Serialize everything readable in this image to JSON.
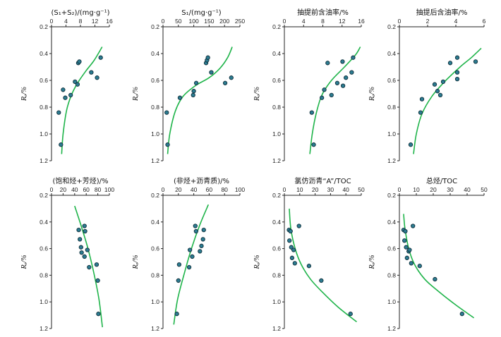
{
  "chart_data": [
    {
      "type": "scatter",
      "title": "(S₁+S₂)/(mg·g⁻¹)",
      "ylabel": "Rₒ/%",
      "xlim": [
        0,
        16
      ],
      "xticks": [
        0,
        4,
        8,
        12,
        16
      ],
      "ylim": [
        0.2,
        1.2
      ],
      "yticks": [
        0.2,
        0.4,
        0.6,
        0.8,
        1.0,
        1.2
      ],
      "points": [
        [
          2,
          0.84
        ],
        [
          2.6,
          1.08
        ],
        [
          3.2,
          0.67
        ],
        [
          3.8,
          0.73
        ],
        [
          5.3,
          0.71
        ],
        [
          6.5,
          0.61
        ],
        [
          7.2,
          0.63
        ],
        [
          7.4,
          0.47
        ],
        [
          7.7,
          0.46
        ],
        [
          11,
          0.54
        ],
        [
          12.6,
          0.58
        ],
        [
          13.6,
          0.43
        ]
      ],
      "trend": [
        [
          2.8,
          1.15
        ],
        [
          3.2,
          1.0
        ],
        [
          4.2,
          0.82
        ],
        [
          5.5,
          0.71
        ],
        [
          7.2,
          0.62
        ],
        [
          9.5,
          0.53
        ],
        [
          11.8,
          0.45
        ],
        [
          14,
          0.35
        ]
      ]
    },
    {
      "type": "scatter",
      "title": "S₁/(mg·g⁻¹)",
      "ylabel": "Rₒ/%",
      "xlim": [
        0,
        250
      ],
      "xticks": [
        0,
        50,
        100,
        150,
        200,
        250
      ],
      "ylim": [
        0.2,
        1.2
      ],
      "yticks": [
        0.2,
        0.4,
        0.6,
        0.8,
        1.0,
        1.2
      ],
      "points": [
        [
          12,
          0.84
        ],
        [
          15,
          1.08
        ],
        [
          55,
          0.73
        ],
        [
          98,
          0.71
        ],
        [
          100,
          0.68
        ],
        [
          108,
          0.62
        ],
        [
          140,
          0.47
        ],
        [
          143,
          0.45
        ],
        [
          146,
          0.43
        ],
        [
          157,
          0.54
        ],
        [
          202,
          0.62
        ],
        [
          222,
          0.58
        ]
      ],
      "trend": [
        [
          15,
          1.15
        ],
        [
          22,
          1.0
        ],
        [
          40,
          0.83
        ],
        [
          65,
          0.72
        ],
        [
          105,
          0.64
        ],
        [
          150,
          0.58
        ],
        [
          185,
          0.51
        ],
        [
          210,
          0.43
        ],
        [
          225,
          0.35
        ]
      ]
    },
    {
      "type": "scatter",
      "title": "抽提前含油率/%",
      "ylabel": "Rₒ/%",
      "xlim": [
        0,
        16
      ],
      "xticks": [
        0,
        4,
        8,
        12,
        16
      ],
      "ylim": [
        0.2,
        1.2
      ],
      "yticks": [
        0.2,
        0.4,
        0.6,
        0.8,
        1.0,
        1.2
      ],
      "points": [
        [
          5.7,
          0.84
        ],
        [
          6.1,
          1.08
        ],
        [
          7.8,
          0.73
        ],
        [
          8.3,
          0.67
        ],
        [
          9,
          0.47
        ],
        [
          9.8,
          0.71
        ],
        [
          11,
          0.62
        ],
        [
          12.1,
          0.46
        ],
        [
          12.2,
          0.64
        ],
        [
          12.8,
          0.58
        ],
        [
          14,
          0.54
        ],
        [
          14.3,
          0.43
        ]
      ],
      "trend": [
        [
          5.3,
          1.15
        ],
        [
          5.8,
          1.0
        ],
        [
          6.6,
          0.85
        ],
        [
          7.8,
          0.71
        ],
        [
          9.8,
          0.6
        ],
        [
          12.5,
          0.5
        ],
        [
          14.8,
          0.41
        ],
        [
          15.8,
          0.35
        ]
      ]
    },
    {
      "type": "scatter",
      "title": "抽提后含油率/%",
      "ylabel": "Rₒ/%",
      "xlim": [
        0,
        6
      ],
      "xticks": [
        0,
        2,
        4,
        6
      ],
      "ylim": [
        0.2,
        1.2
      ],
      "yticks": [
        0.2,
        0.4,
        0.6,
        0.8,
        1.0,
        1.2
      ],
      "points": [
        [
          0.8,
          1.08
        ],
        [
          1.5,
          0.84
        ],
        [
          1.6,
          0.74
        ],
        [
          2.5,
          0.63
        ],
        [
          2.7,
          0.68
        ],
        [
          2.9,
          0.71
        ],
        [
          3.1,
          0.61
        ],
        [
          3.6,
          0.47
        ],
        [
          4.1,
          0.43
        ],
        [
          4.1,
          0.54
        ],
        [
          4.1,
          0.59
        ],
        [
          5.4,
          0.46
        ]
      ],
      "trend": [
        [
          1,
          1.15
        ],
        [
          1.2,
          1.0
        ],
        [
          1.6,
          0.85
        ],
        [
          2.3,
          0.72
        ],
        [
          3.2,
          0.61
        ],
        [
          4.3,
          0.5
        ],
        [
          5.1,
          0.43
        ],
        [
          5.8,
          0.36
        ]
      ]
    },
    {
      "type": "scatter",
      "title": "(饱和烃+芳烃)/%",
      "ylabel": "Rₒ/%",
      "xlim": [
        0,
        100
      ],
      "xticks": [
        0,
        20,
        40,
        60,
        80,
        100
      ],
      "ylim": [
        0.2,
        1.2
      ],
      "yticks": [
        0.2,
        0.4,
        0.6,
        0.8,
        1.0,
        1.2
      ],
      "points": [
        [
          47,
          0.46
        ],
        [
          49,
          0.53
        ],
        [
          51,
          0.59
        ],
        [
          52,
          0.63
        ],
        [
          57,
          0.43
        ],
        [
          57,
          0.66
        ],
        [
          58,
          0.47
        ],
        [
          62,
          0.61
        ],
        [
          65,
          0.74
        ],
        [
          78,
          0.72
        ],
        [
          80,
          0.84
        ],
        [
          81,
          1.09
        ]
      ],
      "trend": [
        [
          40,
          0.28
        ],
        [
          52,
          0.44
        ],
        [
          63,
          0.6
        ],
        [
          73,
          0.78
        ],
        [
          82,
          0.98
        ],
        [
          88,
          1.19
        ]
      ]
    },
    {
      "type": "scatter",
      "title": "(非烃+沥青质)/%",
      "ylabel": "Rₒ/%",
      "xlim": [
        0,
        100
      ],
      "xticks": [
        0,
        20,
        40,
        60,
        80,
        100
      ],
      "ylim": [
        0.2,
        1.2
      ],
      "yticks": [
        0.2,
        0.4,
        0.6,
        0.8,
        1.0,
        1.2
      ],
      "points": [
        [
          18,
          1.09
        ],
        [
          20,
          0.84
        ],
        [
          21,
          0.72
        ],
        [
          34,
          0.74
        ],
        [
          35,
          0.61
        ],
        [
          38,
          0.66
        ],
        [
          42,
          0.43
        ],
        [
          43,
          0.47
        ],
        [
          48,
          0.62
        ],
        [
          50,
          0.58
        ],
        [
          52,
          0.53
        ],
        [
          53,
          0.46
        ]
      ],
      "trend": [
        [
          14,
          1.17
        ],
        [
          19,
          0.98
        ],
        [
          28,
          0.78
        ],
        [
          37,
          0.6
        ],
        [
          48,
          0.42
        ],
        [
          59,
          0.27
        ]
      ]
    },
    {
      "type": "scatter",
      "title": "氯仿沥青“A”/TOC",
      "ylabel": "Rₒ/%",
      "xlim": [
        0,
        50
      ],
      "xticks": [
        0,
        10,
        20,
        30,
        40,
        50
      ],
      "ylim": [
        0.2,
        1.2
      ],
      "yticks": [
        0.2,
        0.4,
        0.6,
        0.8,
        1.0,
        1.2
      ],
      "points": [
        [
          3,
          0.46
        ],
        [
          3.3,
          0.54
        ],
        [
          4,
          0.47
        ],
        [
          4.5,
          0.59
        ],
        [
          5,
          0.67
        ],
        [
          6,
          0.61
        ],
        [
          6.8,
          0.71
        ],
        [
          9.5,
          0.43
        ],
        [
          16,
          0.73
        ],
        [
          24,
          0.84
        ],
        [
          43,
          1.09
        ]
      ],
      "trend": [
        [
          3.2,
          0.3
        ],
        [
          4.2,
          0.45
        ],
        [
          7,
          0.6
        ],
        [
          11,
          0.72
        ],
        [
          17,
          0.83
        ],
        [
          25,
          0.93
        ],
        [
          35,
          1.04
        ],
        [
          47,
          1.15
        ]
      ]
    },
    {
      "type": "scatter",
      "title": "总烃/TOC",
      "ylabel": "Rₒ/%",
      "xlim": [
        0,
        50
      ],
      "xticks": [
        0,
        10,
        20,
        30,
        40,
        50
      ],
      "ylim": [
        0.2,
        1.2
      ],
      "yticks": [
        0.2,
        0.4,
        0.6,
        0.8,
        1.0,
        1.2
      ],
      "points": [
        [
          2.5,
          0.46
        ],
        [
          3,
          0.54
        ],
        [
          3.5,
          0.47
        ],
        [
          4,
          0.59
        ],
        [
          4.5,
          0.67
        ],
        [
          5.5,
          0.62
        ],
        [
          6,
          0.61
        ],
        [
          7,
          0.71
        ],
        [
          8,
          0.43
        ],
        [
          12,
          0.73
        ],
        [
          21,
          0.83
        ],
        [
          37,
          1.09
        ]
      ],
      "trend": [
        [
          2.5,
          0.34
        ],
        [
          3.3,
          0.45
        ],
        [
          5.5,
          0.6
        ],
        [
          9,
          0.72
        ],
        [
          15,
          0.83
        ],
        [
          23,
          0.92
        ],
        [
          33,
          1.02
        ],
        [
          44,
          1.12
        ]
      ]
    }
  ],
  "colors": {
    "point_fill": "#2c7c91",
    "point_stroke": "#0f2e3a",
    "trend": "#1fb44a",
    "axis": "#222222"
  }
}
